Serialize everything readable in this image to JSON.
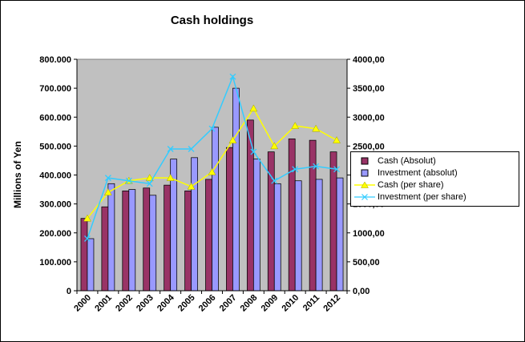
{
  "chart_data": {
    "type": "bar",
    "subtype": "bar-line-combo",
    "title": "Cash holdings",
    "ylabel": "Millions of Yen",
    "xlabel": "",
    "plot_bg": "#c0c0c0",
    "grid": false,
    "legend_position": "right",
    "categories": [
      "2000",
      "2001",
      "2002",
      "2003",
      "2004",
      "2005",
      "2006",
      "2007",
      "2008",
      "2009",
      "2010",
      "2011",
      "2012"
    ],
    "left_axis": {
      "min": 0,
      "max": 800000,
      "ticks": [
        "0",
        "100.000",
        "200.000",
        "300.000",
        "400.000",
        "500.000",
        "600.000",
        "700.000",
        "800.000"
      ]
    },
    "right_axis": {
      "min": 0,
      "max": 4000,
      "ticks": [
        "0,00",
        "500,00",
        "1000,00",
        "1500,00",
        "2000,00",
        "2500,00",
        "3000,00",
        "3500,00",
        "4000,00"
      ]
    },
    "series": [
      {
        "name": "Cash (Absolut)",
        "type": "bar",
        "axis": "left",
        "color": "#993366",
        "values": [
          250000,
          290000,
          345000,
          355000,
          365000,
          345000,
          385000,
          495000,
          590000,
          480000,
          525000,
          520000,
          480000
        ]
      },
      {
        "name": "Investment (absolut)",
        "type": "bar",
        "axis": "left",
        "color": "#9999ff",
        "values": [
          180000,
          370000,
          350000,
          330000,
          455000,
          460000,
          565000,
          700000,
          455000,
          370000,
          380000,
          385000,
          390000
        ]
      },
      {
        "name": "Cash (per share)",
        "type": "line",
        "axis": "right",
        "marker": "triangle",
        "color": "#ffff00",
        "values": [
          1250,
          1700,
          1900,
          1950,
          1950,
          1800,
          2050,
          2600,
          3150,
          2500,
          2850,
          2800,
          2600
        ]
      },
      {
        "name": "Investment (per share)",
        "type": "line",
        "axis": "right",
        "marker": "x",
        "color": "#33ccff",
        "values": [
          900,
          1950,
          1900,
          1850,
          2450,
          2450,
          2800,
          3700,
          2400,
          1900,
          2100,
          2150,
          2100
        ]
      }
    ]
  }
}
